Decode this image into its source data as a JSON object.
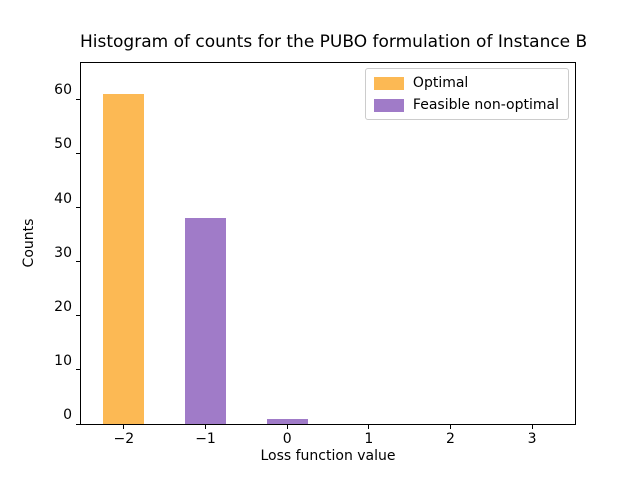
{
  "figure": {
    "background_color": "#ffffff",
    "axes_edge_color": "#000000"
  },
  "chart_data": {
    "type": "bar",
    "title": "Histogram of counts for the PUBO formulation of Instance B",
    "xlabel": "Loss function value",
    "ylabel": "Counts",
    "grid": false,
    "legend_position": "upper right",
    "bar_width": 0.5,
    "xlim": [
      -2.525,
      3.525
    ],
    "ylim": [
      0,
      66.7
    ],
    "xticks": {
      "values": [
        -2,
        -1,
        0,
        1,
        2,
        3
      ],
      "labels": [
        "−2",
        "−1",
        "0",
        "1",
        "2",
        "3"
      ]
    },
    "yticks": {
      "values": [
        0,
        10,
        20,
        30,
        40,
        50,
        60
      ],
      "labels": [
        "0",
        "10",
        "20",
        "30",
        "40",
        "50",
        "60"
      ]
    },
    "series": [
      {
        "name": "Optimal",
        "color": "#FCB954",
        "x": [
          -2
        ],
        "counts": [
          61
        ]
      },
      {
        "name": "Feasible non-optimal",
        "color": "#A07BC8",
        "x": [
          -1,
          0
        ],
        "counts": [
          38,
          1
        ]
      }
    ]
  }
}
